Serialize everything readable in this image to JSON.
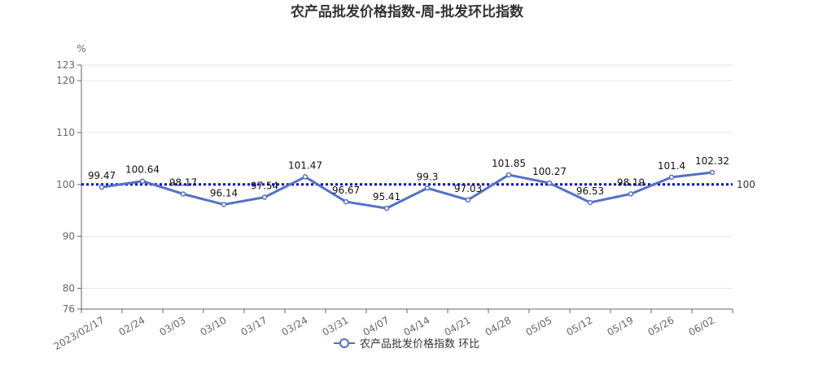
{
  "chart_data": {
    "type": "line",
    "title": "农产品批发价格指数-周-批发环比指数",
    "unit": "%",
    "categories": [
      "2023/02/17",
      "02/24",
      "03/03",
      "03/10",
      "03/17",
      "03/24",
      "03/31",
      "04/07",
      "04/14",
      "04/21",
      "04/28",
      "05/05",
      "05/12",
      "05/19",
      "05/26",
      "06/02"
    ],
    "series": [
      {
        "name": "农产品批发价格指数 环比",
        "values": [
          99.47,
          100.64,
          98.17,
          96.14,
          97.54,
          101.47,
          96.67,
          95.41,
          99.3,
          97.03,
          101.85,
          100.27,
          96.53,
          98.19,
          101.4,
          102.32
        ],
        "labels": [
          "99.47",
          "100.64",
          "98.17",
          "96.14",
          "97.54",
          "101.47",
          "96.67",
          "95.41",
          "99.3",
          "97.03",
          "101.85",
          "100.27",
          "96.53",
          "98.19",
          "101.4",
          "102.32"
        ]
      }
    ],
    "yticks": [
      76,
      80,
      90,
      100,
      110,
      120,
      123
    ],
    "ylim": [
      76,
      123
    ],
    "reference_line": {
      "value": 100,
      "label": "100",
      "style": "dotted"
    },
    "grid": true,
    "legend_position": "bottom",
    "colors": {
      "series": "#5470c6",
      "reference": "#0000cc",
      "grid": "#e6e6e6",
      "axis": "#666666"
    }
  }
}
